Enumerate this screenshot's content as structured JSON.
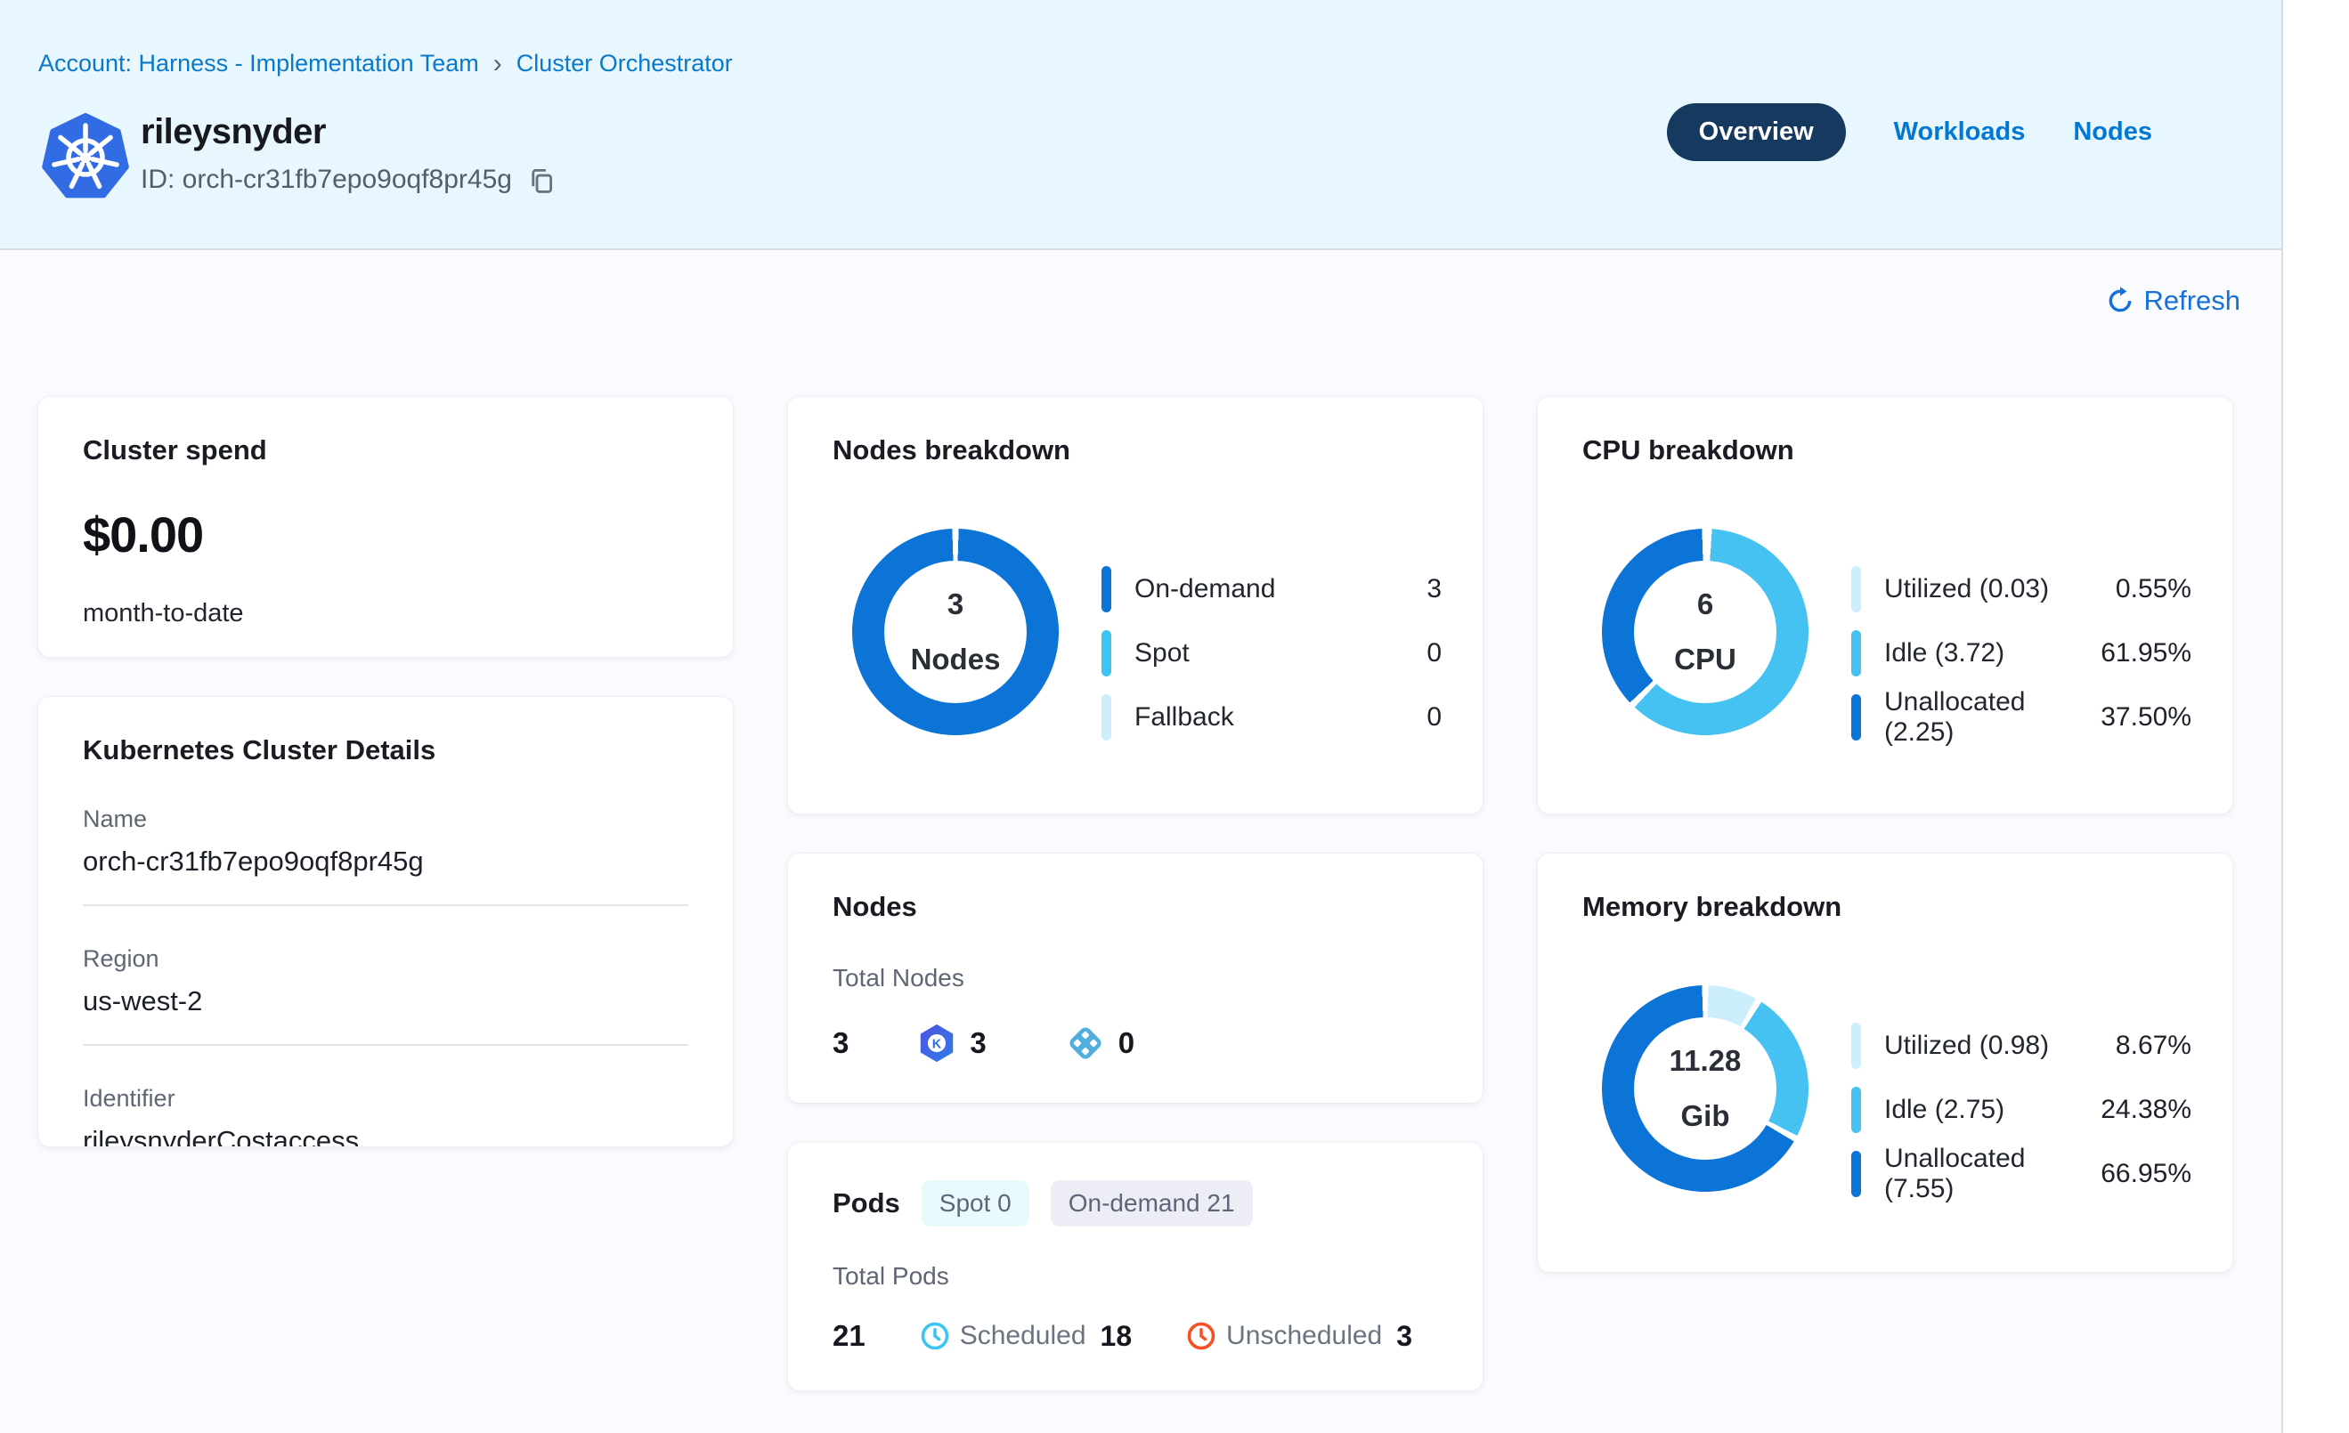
{
  "breadcrumb": {
    "account": "Account: Harness - Implementation Team",
    "separator": "›",
    "page": "Cluster Orchestrator"
  },
  "header": {
    "title": "rileysnyder",
    "id_label": "ID: orch-cr31fb7epo9oqf8pr45g",
    "tabs": [
      {
        "label": "Overview",
        "active": true
      },
      {
        "label": "Workloads",
        "active": false
      },
      {
        "label": "Nodes",
        "active": false
      }
    ]
  },
  "toolbar": {
    "refresh_label": "Refresh"
  },
  "cards": {
    "cluster_spend": {
      "title": "Cluster spend",
      "amount": "$0.00",
      "period": "month-to-date"
    },
    "cluster_details": {
      "title": "Kubernetes Cluster Details",
      "fields": [
        {
          "label": "Name",
          "value": "orch-cr31fb7epo9oqf8pr45g"
        },
        {
          "label": "Region",
          "value": "us-west-2"
        },
        {
          "label": "Identifier",
          "value": "rileysnyderCostaccess"
        }
      ]
    },
    "nodes": {
      "title": "Nodes",
      "total_label": "Total Nodes",
      "total": "3",
      "karpenter_count": "3",
      "autoscaler_count": "0"
    },
    "pods": {
      "title": "Pods",
      "badges": [
        {
          "text": "Spot 0"
        },
        {
          "text": "On-demand 21"
        }
      ],
      "total_label": "Total Pods",
      "total": "21",
      "scheduled_label": "Scheduled",
      "scheduled": "18",
      "unscheduled_label": "Unscheduled",
      "unscheduled": "3"
    }
  },
  "chart_data": [
    {
      "type": "donut",
      "title": "Nodes breakdown",
      "center_value": "3",
      "center_label": "Nodes",
      "legend_position": "right",
      "segments": [
        {
          "label": "On-demand",
          "value": 3,
          "display": "3",
          "color": "#0b74d6"
        },
        {
          "label": "Spot",
          "value": 0,
          "display": "0",
          "color": "#40c4f2"
        },
        {
          "label": "Fallback",
          "value": 0,
          "display": "0",
          "color": "#cdeffb"
        }
      ]
    },
    {
      "type": "donut",
      "title": "CPU breakdown",
      "center_value": "6",
      "center_label": "CPU",
      "legend_position": "right",
      "segments": [
        {
          "label": "Utilized (0.03)",
          "value": 0.55,
          "display": "0.55%",
          "color": "#cdeffb"
        },
        {
          "label": "Idle (3.72)",
          "value": 61.95,
          "display": "61.95%",
          "color": "#45c2f1"
        },
        {
          "label": "Unallocated (2.25)",
          "value": 37.5,
          "display": "37.50%",
          "color": "#0b74d6"
        }
      ]
    },
    {
      "type": "donut",
      "title": "Memory breakdown",
      "center_value": "11.28",
      "center_label": "Gib",
      "legend_position": "right",
      "segments": [
        {
          "label": "Utilized (0.98)",
          "value": 8.67,
          "display": "8.67%",
          "color": "#cdeffb"
        },
        {
          "label": "Idle (2.75)",
          "value": 24.38,
          "display": "24.38%",
          "color": "#45c2f1"
        },
        {
          "label": "Unallocated (7.55)",
          "value": 66.95,
          "display": "66.95%",
          "color": "#0b74d6"
        }
      ]
    }
  ],
  "colors": {
    "accent_blue": "#0278d5",
    "pill_bg": "#15395f",
    "header_bg": "#e8f7fd",
    "donut_blue": "#0b74d6",
    "donut_sky": "#45c2f1",
    "donut_pale": "#cdeffb",
    "scheduled_icon": "#3dc5f2",
    "unscheduled_icon": "#f94f25",
    "k8s_logo_blue": "#326ce5"
  }
}
